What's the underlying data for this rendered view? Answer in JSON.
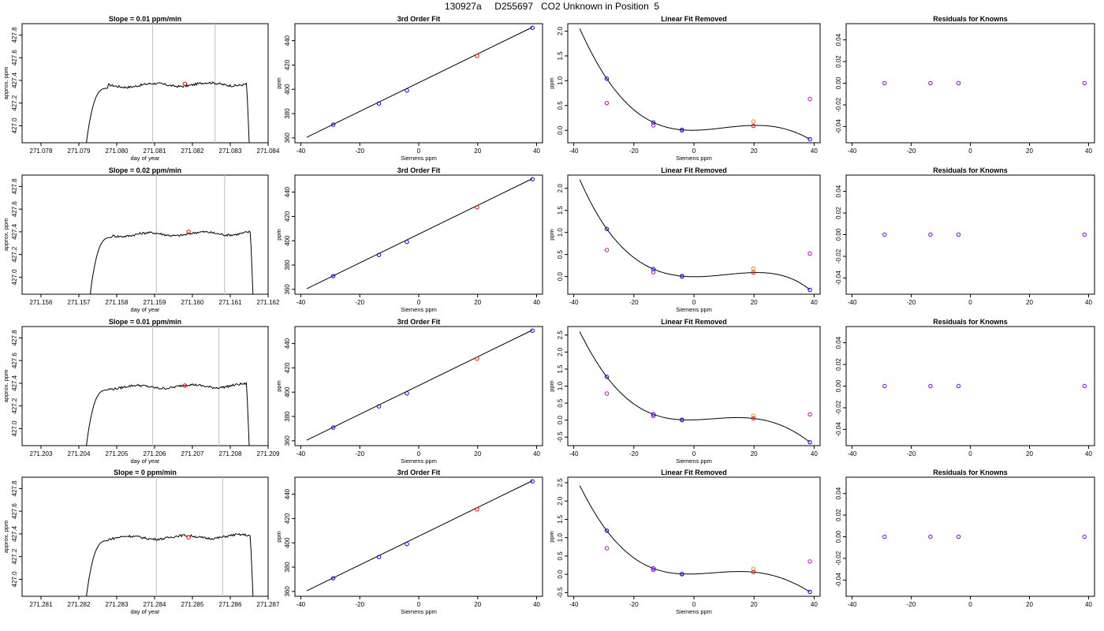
{
  "page": {
    "title": "130927a     D255697   CO2 Unknown in Position  5"
  },
  "colors": {
    "axis": "#000000",
    "line": "#000000",
    "window_line": "#c8c8c8",
    "mean_point": "#ff0000",
    "known_point": "#0000ff",
    "unknown_point": "#ff0000",
    "quad_point": "#cc00cc",
    "cubic_point": "#ff8c00",
    "resid_point": "#7700ff"
  },
  "rows": [
    {
      "timeseries": {
        "title": "Slope =  0.01  ppm/min",
        "xlabel": "day of year",
        "ylabel": "approx. ppm",
        "xlim": [
          271.0775,
          271.084
        ],
        "ylim": [
          426.85,
          427.9
        ],
        "xticks": [
          "271.078",
          "271.079",
          "271.080",
          "271.081",
          "271.082",
          "271.083",
          "271.084"
        ],
        "yticks": [
          "427.0",
          "427.2",
          "427.4",
          "427.6",
          "427.8"
        ],
        "t0": 271.0792,
        "t1": 271.0835,
        "plateau": 427.36,
        "window": [
          271.08095,
          271.0826
        ],
        "mean_point": [
          271.0818,
          427.37
        ]
      },
      "fit": {
        "title": "3rd Order Fit",
        "xlabel": "Siemens ppm",
        "ylabel": "ppm",
        "xlim": [
          -42,
          42
        ],
        "ylim": [
          356,
          454
        ],
        "xticks": [
          "-40",
          "-20",
          "0",
          "20",
          "40"
        ],
        "yticks": [
          "360",
          "380",
          "400",
          "420",
          "440"
        ],
        "line_x": [
          -38,
          38.5
        ],
        "line_y": [
          360.5,
          451
        ],
        "knowns": [
          [
            -29,
            370.9
          ],
          [
            -13.5,
            388.3
          ],
          [
            -4,
            399
          ],
          [
            38.6,
            450.6
          ]
        ],
        "unknown": [
          19.8,
          427.5
        ]
      },
      "linear": {
        "title": "Linear Fit Removed",
        "xlabel": "Siemens ppm",
        "ylabel": "ppm",
        "xlim": [
          -42,
          42
        ],
        "ylim": [
          -0.25,
          2.15
        ],
        "xticks": [
          "-40",
          "-20",
          "0",
          "20",
          "40"
        ],
        "yticks": [
          "0.0",
          "0.5",
          "1.0",
          "1.5",
          "2.0"
        ],
        "curve": [
          2.05,
          1.04,
          0.16,
          0.01,
          0.1,
          -0.18
        ],
        "knowns": [
          [
            -29,
            1.04
          ],
          [
            -13.5,
            0.16
          ],
          [
            -4,
            0.01
          ],
          [
            38.6,
            -0.18
          ]
        ],
        "quad": [
          [
            -29,
            0.55
          ],
          [
            -13.5,
            0.1
          ],
          [
            -4,
            0.0
          ],
          [
            38.6,
            0.63
          ]
        ],
        "cubic": [
          [
            19.8,
            0.18
          ]
        ],
        "unknown": [
          19.8,
          0.09
        ]
      },
      "resid": {
        "title": "Residuals for Knowns",
        "xlim": [
          -42,
          42
        ],
        "ylim": [
          -0.055,
          0.055
        ],
        "xticks": [
          "-40",
          "-20",
          "0",
          "20",
          "40"
        ],
        "yticks": [
          "-0.04",
          "-0.02",
          "0.00",
          "0.02",
          "0.04"
        ],
        "points": [
          [
            -29,
            0
          ],
          [
            -13.5,
            0
          ],
          [
            -4,
            0
          ],
          [
            38.6,
            0
          ]
        ]
      }
    },
    {
      "timeseries": {
        "title": "Slope =  0.02  ppm/min",
        "xlabel": "day of year",
        "ylabel": "approx. ppm",
        "xlim": [
          271.1555,
          271.162
        ],
        "ylim": [
          426.85,
          427.9
        ],
        "xticks": [
          "271.156",
          "271.157",
          "271.158",
          "271.159",
          "271.160",
          "271.161",
          "271.162"
        ],
        "yticks": [
          "427.0",
          "427.2",
          "427.4",
          "427.6",
          "427.8"
        ],
        "t0": 271.1573,
        "t1": 271.1616,
        "plateau": 427.38,
        "window": [
          271.15905,
          271.16085
        ],
        "mean_point": [
          271.1599,
          427.4
        ]
      },
      "fit": {
        "title": "3rd Order Fit",
        "xlabel": "Siemens ppm",
        "ylabel": "ppm",
        "xlim": [
          -42,
          42
        ],
        "ylim": [
          356,
          454
        ],
        "xticks": [
          "-40",
          "-20",
          "0",
          "20",
          "40"
        ],
        "yticks": [
          "360",
          "380",
          "400",
          "420",
          "440"
        ],
        "line_x": [
          -38,
          38.5
        ],
        "line_y": [
          360.5,
          451
        ],
        "knowns": [
          [
            -29,
            370.9
          ],
          [
            -13.5,
            388.3
          ],
          [
            -4,
            399
          ],
          [
            38.6,
            450.6
          ]
        ],
        "unknown": [
          19.8,
          427.5
        ]
      },
      "linear": {
        "title": "Linear Fit Removed",
        "xlabel": "Siemens ppm",
        "ylabel": "ppm",
        "xlim": [
          -42,
          42
        ],
        "ylim": [
          -0.4,
          2.3
        ],
        "xticks": [
          "-40",
          "-20",
          "0",
          "20",
          "40"
        ],
        "yticks": [
          "0.0",
          "0.5",
          "1.0",
          "1.5",
          "2.0"
        ],
        "curve": [
          2.2,
          1.08,
          0.17,
          0.01,
          0.09,
          -0.3
        ],
        "knowns": [
          [
            -29,
            1.08
          ],
          [
            -13.5,
            0.17
          ],
          [
            -4,
            0.01
          ],
          [
            38.6,
            -0.3
          ]
        ],
        "quad": [
          [
            -29,
            0.6
          ],
          [
            -13.5,
            0.1
          ],
          [
            -4,
            0.0
          ],
          [
            38.6,
            0.52
          ]
        ],
        "cubic": [
          [
            19.8,
            0.18
          ]
        ],
        "unknown": [
          19.8,
          0.09
        ]
      },
      "resid": {
        "title": "Residuals for Knowns",
        "xlim": [
          -42,
          42
        ],
        "ylim": [
          -0.055,
          0.055
        ],
        "xticks": [
          "-40",
          "-20",
          "0",
          "20",
          "40"
        ],
        "yticks": [
          "-0.04",
          "-0.02",
          "0.00",
          "0.02",
          "0.04"
        ],
        "points": [
          [
            -29,
            0
          ],
          [
            -13.5,
            0
          ],
          [
            -4,
            0
          ],
          [
            38.6,
            0
          ]
        ]
      }
    },
    {
      "timeseries": {
        "title": "Slope =  0.01  ppm/min",
        "xlabel": "day of year",
        "ylabel": "approx. ppm",
        "xlim": [
          271.2025,
          271.209
        ],
        "ylim": [
          426.85,
          427.9
        ],
        "xticks": [
          "271.203",
          "271.204",
          "271.205",
          "271.206",
          "271.207",
          "271.208",
          "271.209"
        ],
        "yticks": [
          "427.0",
          "427.2",
          "427.4",
          "427.6",
          "427.8"
        ],
        "t0": 271.2042,
        "t1": 271.2085,
        "plateau": 427.37,
        "window": [
          271.20595,
          271.2077
        ],
        "mean_point": [
          271.2068,
          427.38
        ]
      },
      "fit": {
        "title": "3rd Order Fit",
        "xlabel": "Siemens ppm",
        "ylabel": "ppm",
        "xlim": [
          -42,
          42
        ],
        "ylim": [
          356,
          454
        ],
        "xticks": [
          "-40",
          "-20",
          "0",
          "20",
          "40"
        ],
        "yticks": [
          "360",
          "380",
          "400",
          "420",
          "440"
        ],
        "line_x": [
          -38,
          38.5
        ],
        "line_y": [
          360.5,
          451
        ],
        "knowns": [
          [
            -29,
            370.9
          ],
          [
            -13.5,
            388.3
          ],
          [
            -4,
            399
          ],
          [
            38.6,
            450.6
          ]
        ],
        "unknown": [
          19.8,
          427.5
        ]
      },
      "linear": {
        "title": "Linear Fit Removed",
        "xlabel": "Siemens ppm",
        "ylabel": "ppm",
        "xlim": [
          -42,
          42
        ],
        "ylim": [
          -0.75,
          2.75
        ],
        "xticks": [
          "-40",
          "-20",
          "0",
          "20",
          "40"
        ],
        "yticks": [
          "-0.5",
          "0.0",
          "0.5",
          "1.0",
          "1.5",
          "2.0",
          "2.5"
        ],
        "curve": [
          2.6,
          1.27,
          0.17,
          0.01,
          0.05,
          -0.65
        ],
        "knowns": [
          [
            -29,
            1.27
          ],
          [
            -13.5,
            0.17
          ],
          [
            -4,
            0.01
          ],
          [
            38.6,
            -0.65
          ]
        ],
        "quad": [
          [
            -29,
            0.78
          ],
          [
            -13.5,
            0.12
          ],
          [
            -4,
            0.0
          ],
          [
            38.6,
            0.17
          ]
        ],
        "cubic": [
          [
            19.8,
            0.13
          ]
        ],
        "unknown": [
          19.8,
          0.05
        ]
      },
      "resid": {
        "title": "Residuals for Knowns",
        "xlim": [
          -42,
          42
        ],
        "ylim": [
          -0.055,
          0.055
        ],
        "xticks": [
          "-40",
          "-20",
          "0",
          "20",
          "40"
        ],
        "yticks": [
          "-0.04",
          "-0.02",
          "0.00",
          "0.02",
          "0.04"
        ],
        "points": [
          [
            -29,
            0
          ],
          [
            -13.5,
            0
          ],
          [
            -4,
            0
          ],
          [
            38.6,
            0
          ]
        ]
      }
    },
    {
      "timeseries": {
        "title": "Slope =  0  ppm/min",
        "xlabel": "day of year",
        "ylabel": "approx. ppm",
        "xlim": [
          271.2805,
          271.287
        ],
        "ylim": [
          426.85,
          427.9
        ],
        "xticks": [
          "271.281",
          "271.282",
          "271.283",
          "271.284",
          "271.285",
          "271.286",
          "271.287"
        ],
        "yticks": [
          "427.0",
          "427.2",
          "427.4",
          "427.6",
          "427.8"
        ],
        "t0": 271.2822,
        "t1": 271.2866,
        "plateau": 427.37,
        "window": [
          271.28405,
          271.2858
        ],
        "mean_point": [
          271.2849,
          427.37
        ]
      },
      "fit": {
        "title": "3rd Order Fit",
        "xlabel": "Siemens ppm",
        "ylabel": "ppm",
        "xlim": [
          -42,
          42
        ],
        "ylim": [
          356,
          454
        ],
        "xticks": [
          "-40",
          "-20",
          "0",
          "20",
          "40"
        ],
        "yticks": [
          "360",
          "380",
          "400",
          "420",
          "440"
        ],
        "line_x": [
          -38,
          38.5
        ],
        "line_y": [
          360.5,
          451
        ],
        "knowns": [
          [
            -29,
            370.9
          ],
          [
            -13.5,
            388.3
          ],
          [
            -4,
            399
          ],
          [
            38.6,
            450.6
          ]
        ],
        "unknown": [
          19.8,
          427.5
        ]
      },
      "linear": {
        "title": "Linear Fit Removed",
        "xlabel": "Siemens ppm",
        "ylabel": "ppm",
        "xlim": [
          -42,
          42
        ],
        "ylim": [
          -0.6,
          2.65
        ],
        "xticks": [
          "-40",
          "-20",
          "0",
          "20",
          "40"
        ],
        "yticks": [
          "-0.5",
          "0.0",
          "0.5",
          "1.0",
          "1.5",
          "2.0",
          "2.5"
        ],
        "curve": [
          2.42,
          1.19,
          0.16,
          0.01,
          0.06,
          -0.48
        ],
        "knowns": [
          [
            -29,
            1.19
          ],
          [
            -13.5,
            0.16
          ],
          [
            -4,
            0.01
          ],
          [
            38.6,
            -0.48
          ]
        ],
        "quad": [
          [
            -29,
            0.71
          ],
          [
            -13.5,
            0.12
          ],
          [
            -4,
            0.0
          ],
          [
            38.6,
            0.35
          ]
        ],
        "cubic": [
          [
            19.8,
            0.15
          ]
        ],
        "unknown": [
          19.8,
          0.06
        ]
      },
      "resid": {
        "title": "Residuals for Knowns",
        "xlim": [
          -42,
          42
        ],
        "ylim": [
          -0.055,
          0.055
        ],
        "xticks": [
          "-40",
          "-20",
          "0",
          "20",
          "40"
        ],
        "yticks": [
          "-0.04",
          "-0.02",
          "0.00",
          "0.02",
          "0.04"
        ],
        "points": [
          [
            -29,
            0
          ],
          [
            -13.5,
            0
          ],
          [
            -4,
            0
          ],
          [
            38.6,
            0
          ]
        ]
      }
    }
  ],
  "chart_data": [
    {
      "type": "line",
      "title": "Slope =  0.01  ppm/min",
      "xlabel": "day of year",
      "ylabel": "approx. ppm",
      "xlim": [
        271.0775,
        271.084
      ],
      "ylim": [
        426.85,
        427.9
      ],
      "x": [
        271.0792,
        271.0798,
        271.0802,
        271.081,
        271.082,
        271.083,
        271.0834,
        271.0835
      ],
      "series": [
        {
          "values": [
            426.85,
            427.25,
            427.34,
            427.36,
            427.36,
            427.37,
            427.34,
            426.85
          ]
        }
      ],
      "grid": false
    },
    {
      "type": "scatter",
      "title": "3rd Order Fit",
      "xlabel": "Siemens ppm",
      "ylabel": "ppm",
      "xlim": [
        -42,
        42
      ],
      "ylim": [
        356,
        454
      ],
      "x": [
        -29,
        -13.5,
        -4,
        19.8,
        38.6
      ],
      "series": [
        {
          "values": [
            370.9,
            388.3,
            399,
            427.5,
            450.6
          ]
        }
      ],
      "grid": false
    },
    {
      "type": "scatter",
      "title": "Linear Fit Removed",
      "xlabel": "Siemens ppm",
      "ylabel": "ppm",
      "xlim": [
        -42,
        42
      ],
      "ylim": [
        -0.25,
        2.15
      ],
      "x": [
        -29,
        -13.5,
        -4,
        19.8,
        38.6
      ],
      "series": [
        {
          "values": [
            1.04,
            0.16,
            0.01,
            0.09,
            -0.18
          ]
        }
      ],
      "grid": false
    },
    {
      "type": "scatter",
      "title": "Residuals for Knowns",
      "xlim": [
        -42,
        42
      ],
      "ylim": [
        -0.055,
        0.055
      ],
      "x": [
        -29,
        -13.5,
        -4,
        38.6
      ],
      "series": [
        {
          "values": [
            0,
            0,
            0,
            0
          ]
        }
      ],
      "grid": false
    }
  ]
}
